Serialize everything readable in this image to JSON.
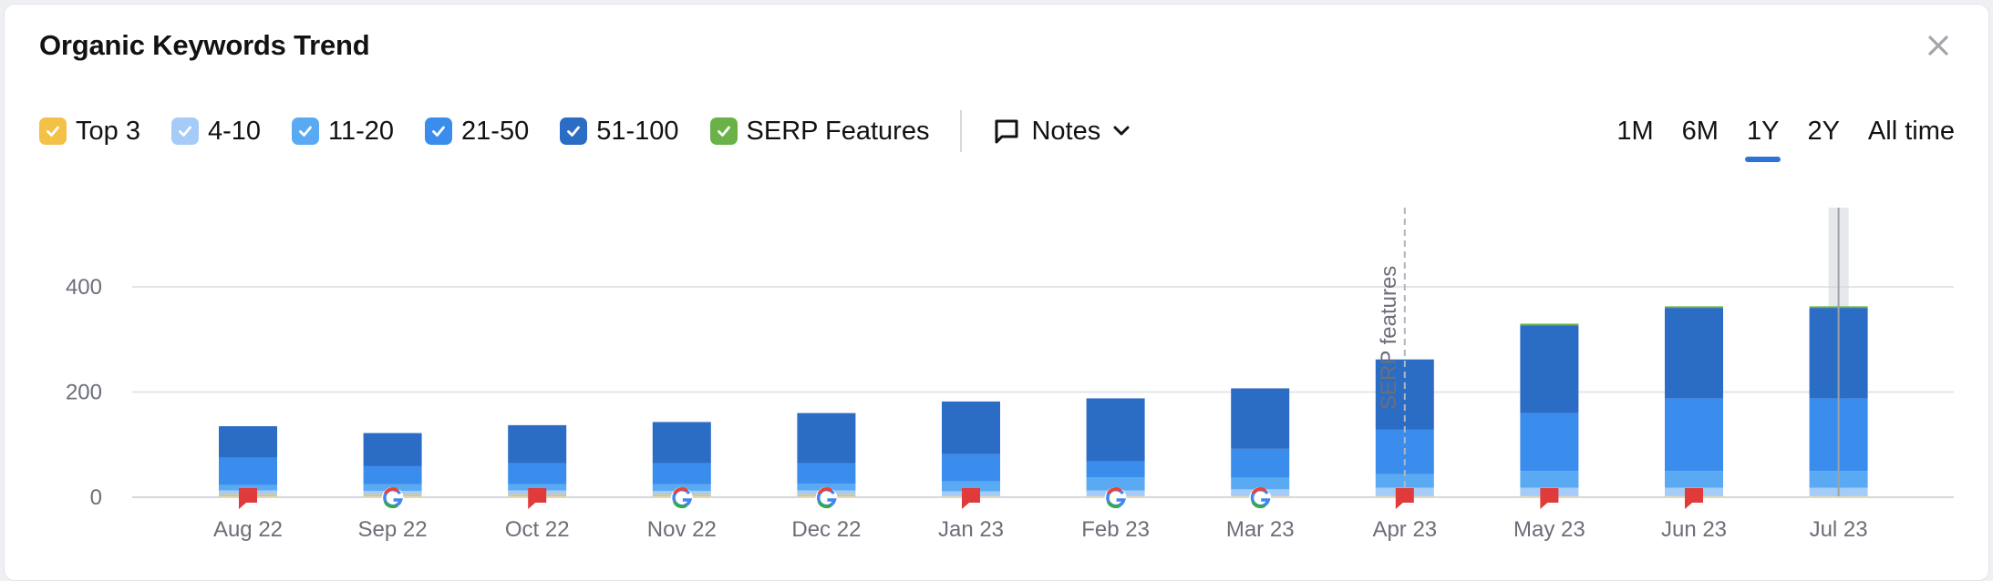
{
  "title": "Organic Keywords Trend",
  "legend": [
    {
      "label": "Top 3",
      "color": "#f3c146"
    },
    {
      "label": "4-10",
      "color": "#a5ccf8"
    },
    {
      "label": "11-20",
      "color": "#5aaaf3"
    },
    {
      "label": "21-50",
      "color": "#3a8ded"
    },
    {
      "label": "51-100",
      "color": "#2b6cc4"
    },
    {
      "label": "SERP Features",
      "color": "#6ab248"
    }
  ],
  "notes": {
    "label": "Notes",
    "icon": "comment-icon"
  },
  "periods": [
    {
      "label": "1M",
      "active": false
    },
    {
      "label": "6M",
      "active": false
    },
    {
      "label": "1Y",
      "active": true
    },
    {
      "label": "2Y",
      "active": false
    },
    {
      "label": "All time",
      "active": false
    }
  ],
  "chart_data": {
    "type": "bar",
    "stacked": true,
    "categories": [
      "Aug 22",
      "Sep 22",
      "Oct 22",
      "Nov 22",
      "Dec 22",
      "Jan 23",
      "Feb 23",
      "Mar 23",
      "Apr 23",
      "May 23",
      "Jun 23",
      "Jul 23"
    ],
    "series": [
      {
        "name": "Top 3",
        "color": "#f3c146",
        "values": [
          5,
          5,
          5,
          5,
          5,
          3,
          3,
          3,
          3,
          3,
          3,
          3
        ]
      },
      {
        "name": "4-10",
        "color": "#a5ccf8",
        "values": [
          8,
          7,
          8,
          7,
          8,
          8,
          10,
          12,
          15,
          15,
          15,
          15
        ]
      },
      {
        "name": "11-20",
        "color": "#5aaaf3",
        "values": [
          10,
          13,
          12,
          13,
          13,
          19,
          25,
          22,
          26,
          32,
          32,
          32
        ]
      },
      {
        "name": "21-50",
        "color": "#3a8ded",
        "values": [
          52,
          34,
          40,
          40,
          39,
          52,
          30,
          55,
          85,
          110,
          138,
          138
        ]
      },
      {
        "name": "51-100",
        "color": "#2b6cc4",
        "values": [
          60,
          63,
          72,
          78,
          95,
          100,
          120,
          115,
          133,
          167,
          172,
          172
        ]
      },
      {
        "name": "SERP Features",
        "color": "#6ab248",
        "values": [
          0,
          0,
          0,
          0,
          0,
          0,
          0,
          0,
          0,
          3,
          3,
          3
        ]
      }
    ],
    "yticks": [
      0,
      200,
      400
    ],
    "ylim": [
      0,
      540
    ],
    "grid": true,
    "markers": [
      "note",
      "google",
      "note",
      "google",
      "google",
      "note",
      "google",
      "google",
      "note",
      "note",
      "note",
      "none"
    ],
    "annotation": {
      "category": "Apr 23",
      "label": "SERP features"
    },
    "hover_category": "Jul 23"
  }
}
